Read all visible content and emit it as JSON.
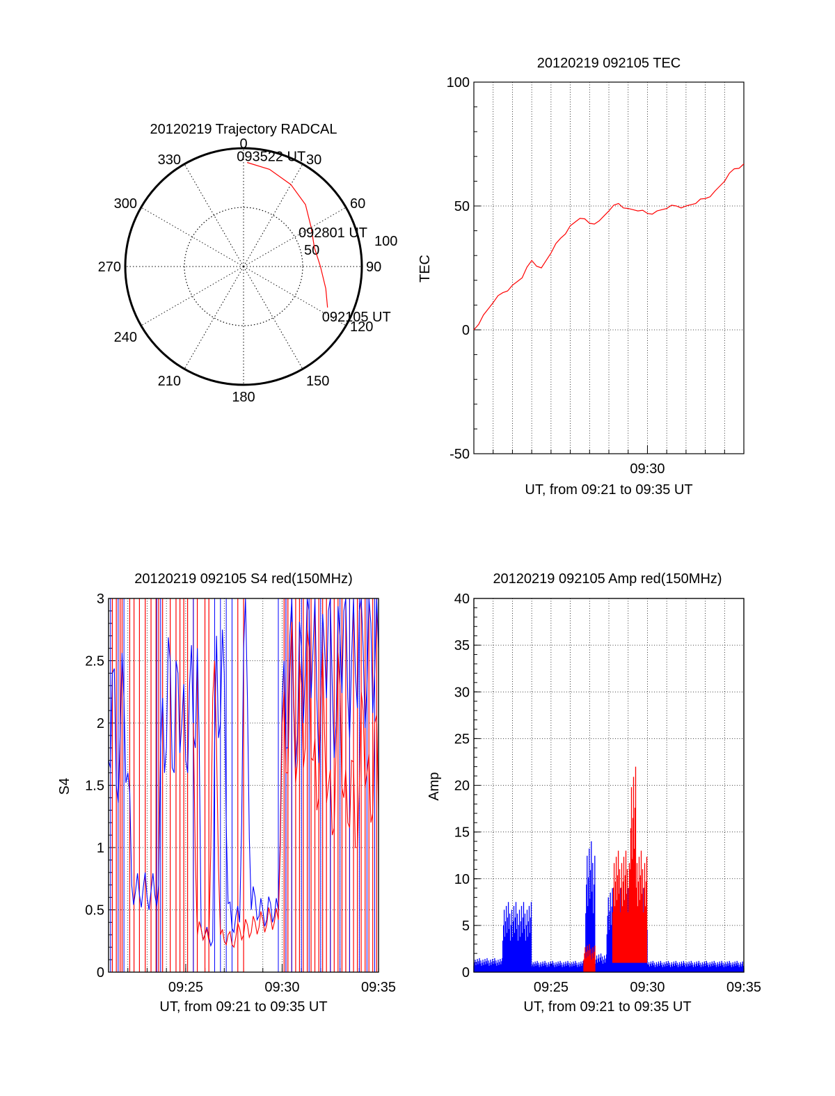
{
  "chart_data": [
    {
      "type": "polar",
      "title": "20120219 Trajectory RADCAL",
      "angle_labels": [
        "0",
        "30",
        "60",
        "90",
        "120",
        "150",
        "180",
        "210",
        "240",
        "270",
        "300",
        "330"
      ],
      "radial_labels": [
        "50",
        "100"
      ],
      "zenith_max": 100,
      "track": {
        "color": "#ff0000",
        "points": [
          {
            "az": 2,
            "zen": 88
          },
          {
            "az": 15,
            "zen": 85
          },
          {
            "az": 30,
            "zen": 80
          },
          {
            "az": 45,
            "zen": 74
          },
          {
            "az": 60,
            "zen": 66
          },
          {
            "az": 75,
            "zen": 62
          },
          {
            "az": 90,
            "zen": 65
          },
          {
            "az": 105,
            "zen": 72
          },
          {
            "az": 116,
            "zen": 79
          }
        ],
        "labels": [
          {
            "text": "093522 UT",
            "az": 2,
            "zen": 88
          },
          {
            "text": "092801 UT",
            "az": 70,
            "zen": 62
          },
          {
            "text": "092105 UT",
            "az": 116,
            "zen": 79
          }
        ]
      }
    },
    {
      "type": "line",
      "title": "20120219 092105 TEC",
      "xlabel": "UT, from 09:21 to 09:35 UT",
      "ylabel": "TEC",
      "xlim": [
        9.35,
        9.5833
      ],
      "ylim": [
        -50,
        100
      ],
      "ytick_labels": [
        "100",
        "50",
        "0",
        "-50"
      ],
      "xtick_labels": [
        "09:30"
      ],
      "series": [
        {
          "color": "#ff0000",
          "x": [
            9.35,
            9.3583,
            9.3667,
            9.375,
            9.3833,
            9.3917,
            9.4,
            9.4083,
            9.4167,
            9.425,
            9.4333,
            9.4417,
            9.45,
            9.4583,
            9.4667,
            9.475,
            9.4833,
            9.4917,
            9.5,
            9.5083,
            9.5167,
            9.525,
            9.5333,
            9.5417,
            9.55,
            9.5583,
            9.5667,
            9.575,
            9.5833
          ],
          "y": [
            0,
            6,
            11,
            15,
            18,
            21,
            28,
            25,
            31,
            37,
            42,
            45,
            43,
            44,
            48,
            51,
            49,
            48,
            47,
            48,
            49,
            50,
            50,
            51,
            53,
            56,
            60,
            65,
            67
          ]
        }
      ]
    },
    {
      "type": "line",
      "title": "20120219 092105 S4 red(150MHz)",
      "xlabel": "UT, from 09:21 to 09:35 UT",
      "ylabel": "S4",
      "xlim": [
        9.35,
        9.5833
      ],
      "ylim": [
        0,
        3
      ],
      "ytick_labels": [
        "3",
        "2.5",
        "2",
        "1.5",
        "1",
        "0.5",
        "0"
      ],
      "xtick_labels": [
        "09:25",
        "09:30",
        "09:35"
      ],
      "series": [
        {
          "color": "#0000ff",
          "x": [
            9.35,
            9.3533,
            9.3567,
            9.36,
            9.3633,
            9.3667,
            9.37,
            9.3733,
            9.3767,
            9.38,
            9.3833,
            9.3867,
            9.39,
            9.3933,
            9.3967,
            9.4,
            9.4033,
            9.4067,
            9.41,
            9.4133,
            9.4167,
            9.42,
            9.4233,
            9.4267,
            9.43,
            9.4333,
            9.4367,
            9.44,
            9.4433,
            9.4467,
            9.45,
            9.4533,
            9.4567,
            9.46,
            9.4633,
            9.4667,
            9.47,
            9.4733,
            9.4767,
            9.48,
            9.4833,
            9.4867,
            9.49,
            9.4933,
            9.4967,
            9.5,
            9.5033,
            9.5067,
            9.51,
            9.5133,
            9.5167,
            9.52,
            9.5233,
            9.5267,
            9.53,
            9.5333,
            9.5367,
            9.54,
            9.5433,
            9.5467,
            9.55,
            9.5533,
            9.5567,
            9.56,
            9.5633,
            9.5667,
            9.57,
            9.5733,
            9.5767,
            9.58,
            9.5833
          ],
          "y": [
            1.7,
            2.4,
            1.5,
            1.9,
            2.2,
            1.6,
            0.7,
            0.65,
            0.62,
            0.68,
            0.6,
            0.65,
            0.62,
            0.7,
            2.2,
            1.8,
            2.5,
            1.6,
            2.4,
            2.0,
            1.7,
            2.3,
            1.9,
            2.6,
            0.35,
            0.3,
            0.28,
            0.25,
            2.7,
            2.0,
            2.4,
            0.55,
            0.35,
            0.45,
            0.4,
            2.6,
            2.2,
            0.5,
            0.6,
            0.45,
            0.5,
            0.42,
            0.55,
            0.45,
            0.5,
            2.2,
            1.8,
            2.7,
            2.2,
            1.9,
            2.6,
            2.4,
            2.9,
            2.6,
            2.2,
            2.0,
            2.6,
            2.9,
            2.3,
            2.0,
            2.7,
            2.9,
            2.2,
            2.5,
            2.4,
            2.9,
            2.6,
            2.3,
            2.8,
            2.4,
            2.6
          ]
        },
        {
          "color": "#ff0000",
          "x": [
            9.4233,
            9.4267,
            9.43,
            9.4333,
            9.4367,
            9.44,
            9.4433,
            9.4467,
            9.45,
            9.4533,
            9.4567,
            9.46,
            9.4633,
            9.4667,
            9.47,
            9.4733,
            9.4767,
            9.48,
            9.4833,
            9.4867,
            9.49,
            9.4933,
            9.4967,
            9.5,
            9.5033,
            9.5067,
            9.51,
            9.5133,
            9.5167,
            9.52,
            9.5233,
            9.5267,
            9.53,
            9.5333,
            9.5367,
            9.54,
            9.5433,
            9.5467,
            9.55,
            9.5533,
            9.5567,
            9.56,
            9.5633,
            9.5667,
            9.57,
            9.5733,
            9.5767,
            9.58,
            9.5833
          ],
          "y": [
            2.0,
            0.3,
            0.35,
            0.3,
            0.25,
            2.2,
            1.8,
            0.3,
            0.25,
            0.3,
            0.22,
            0.28,
            0.35,
            0.3,
            0.38,
            0.32,
            0.4,
            0.36,
            0.42,
            0.38,
            0.45,
            0.4,
            0.42,
            2.0,
            1.6,
            2.4,
            2.1,
            1.7,
            2.3,
            1.8,
            2.6,
            1.7,
            1.3,
            2.2,
            1.9,
            1.5,
            1.1,
            1.8,
            2.3,
            1.4,
            1.2,
            1.7,
            1.0,
            1.5,
            2.1,
            1.6,
            1.2,
            2.0,
            1.3
          ]
        }
      ],
      "dropout_lines": {
        "red_x": [
          9.3533,
          9.3567,
          9.36,
          9.3617,
          9.3683,
          9.372,
          9.3767,
          9.3817,
          9.3867,
          9.391,
          9.3933,
          9.3967,
          9.4033,
          9.4083,
          9.4117,
          9.415,
          9.4183,
          9.4233,
          9.4267,
          9.4333,
          9.4367,
          9.4617,
          9.4667,
          9.5017,
          9.5033,
          9.505,
          9.5083,
          9.5117,
          9.515,
          9.5183,
          9.5217,
          9.525,
          9.5283,
          9.5317,
          9.535,
          9.5383,
          9.5417,
          9.545,
          9.5483,
          9.5517,
          9.555,
          9.5583,
          9.5617,
          9.565,
          9.5683,
          9.5717,
          9.575,
          9.5783,
          9.5817
        ],
        "blue_x": [
          9.3517,
          9.3583,
          9.3633,
          9.3917,
          9.395,
          9.4233,
          9.4417,
          9.4467,
          9.4517,
          9.4567,
          9.4967,
          9.5033,
          9.5083,
          9.5167,
          9.5233,
          9.5333,
          9.5417,
          9.55,
          9.5583,
          9.5667,
          9.5733,
          9.58
        ]
      }
    },
    {
      "type": "line",
      "title": "20120219 092105 Amp red(150MHz)",
      "xlabel": "UT, from 09:21 to 09:35 UT",
      "ylabel": "Amp",
      "xlim": [
        9.35,
        9.5833
      ],
      "ylim": [
        0,
        40
      ],
      "ytick_labels": [
        "40",
        "35",
        "30",
        "25",
        "20",
        "15",
        "10",
        "5",
        "0"
      ],
      "xtick_labels": [
        "09:25",
        "09:30",
        "09:35"
      ],
      "series": [
        {
          "color": "#0000ff",
          "name": "",
          "bands": [
            {
              "x0": 9.35,
              "x1": 9.375,
              "lo": 0,
              "hi": 1.5
            },
            {
              "x0": 9.375,
              "x1": 9.4,
              "lo": 0,
              "hi": 7.5
            },
            {
              "x0": 9.4,
              "x1": 9.4467,
              "lo": 0,
              "hi": 1.2
            },
            {
              "x0": 9.4467,
              "x1": 9.455,
              "lo": 0,
              "hi": 14
            },
            {
              "x0": 9.455,
              "x1": 9.465,
              "lo": 0,
              "hi": 2
            },
            {
              "x0": 9.465,
              "x1": 9.5,
              "lo": 0,
              "hi": 9
            },
            {
              "x0": 9.5,
              "x1": 9.5833,
              "lo": 0,
              "hi": 1.2
            }
          ]
        },
        {
          "color": "#ff0000",
          "name": "",
          "bands": [
            {
              "x0": 9.445,
              "x1": 9.455,
              "lo": 0,
              "hi": 3
            },
            {
              "x0": 9.47,
              "x1": 9.5,
              "lo": 1,
              "hi": 13
            },
            {
              "x0": 9.485,
              "x1": 9.49,
              "lo": 2,
              "hi": 22
            }
          ]
        }
      ]
    }
  ]
}
